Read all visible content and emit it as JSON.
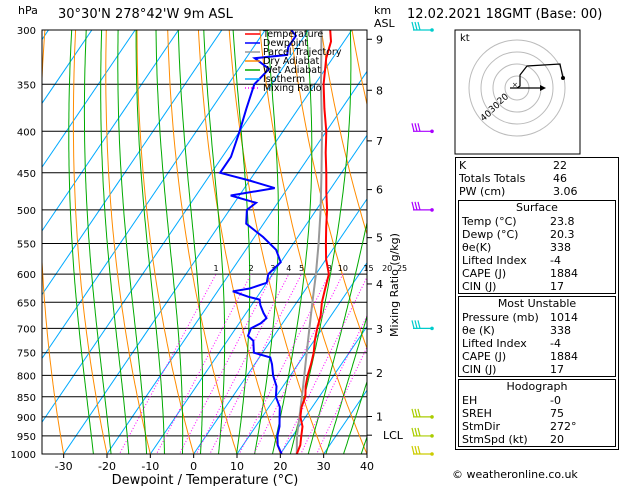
{
  "header": {
    "location": "30°30'N  278°42'W  9m  ASL",
    "datetime": "12.02.2021  18GMT  (Base: 00)"
  },
  "axes": {
    "pressure_unit": "hPa",
    "height_unit": "km",
    "height_unit2": "ASL",
    "mixing_label": "Mixing Ratio (g/kg)"
  },
  "legend": [
    {
      "label": "Temperature",
      "color": "#ff0000"
    },
    {
      "label": "Dewpoint",
      "color": "#0000ff"
    },
    {
      "label": "Parcel Trajectory",
      "color": "#999999"
    },
    {
      "label": "Dry Adiabat",
      "color": "#ff8c00"
    },
    {
      "label": "Wet Adiabat",
      "color": "#00aa00"
    },
    {
      "label": "Isotherm",
      "color": "#00aaff"
    },
    {
      "label": "Mixing Ratio",
      "color": "#ff00ff"
    }
  ],
  "chart_data": {
    "type": "line",
    "title": "",
    "xlabel": "Dewpoint / Temperature (°C)",
    "ylabel": "hPa",
    "xlim": [
      -35,
      40
    ],
    "x_ticks": [
      "-30",
      "-20",
      "-10",
      "0",
      "10",
      "20",
      "30",
      "40"
    ],
    "pressure_levels": [
      300,
      350,
      400,
      450,
      500,
      550,
      600,
      650,
      700,
      750,
      800,
      850,
      900,
      950,
      1000
    ],
    "height_ticks_km": [
      {
        "label": "9",
        "p": 308
      },
      {
        "label": "8",
        "p": 356
      },
      {
        "label": "7",
        "p": 411
      },
      {
        "label": "6",
        "p": 472
      },
      {
        "label": "5",
        "p": 541
      },
      {
        "label": "4",
        "p": 617
      },
      {
        "label": "3",
        "p": 701
      },
      {
        "label": "2",
        "p": 795
      },
      {
        "label": "1",
        "p": 899
      },
      {
        "label": "LCL",
        "p": 948
      }
    ],
    "mixing_ratio_labels": [
      "1",
      "2",
      "3",
      "4",
      "5",
      "8",
      "10",
      "15",
      "20",
      "25"
    ],
    "series": [
      {
        "name": "Temperature",
        "color": "#ff0000",
        "points": [
          [
            1000,
            23.8
          ],
          [
            975,
            23.2
          ],
          [
            950,
            22.0
          ],
          [
            925,
            20.8
          ],
          [
            900,
            18.8
          ],
          [
            875,
            17.5
          ],
          [
            850,
            16.8
          ],
          [
            825,
            15.2
          ],
          [
            800,
            14.0
          ],
          [
            775,
            13.0
          ],
          [
            750,
            11.8
          ],
          [
            725,
            10.2
          ],
          [
            700,
            8.8
          ],
          [
            675,
            7.6
          ],
          [
            650,
            5.8
          ],
          [
            625,
            4.4
          ],
          [
            600,
            3.0
          ],
          [
            575,
            0.0
          ],
          [
            550,
            -2.5
          ],
          [
            525,
            -5.0
          ],
          [
            500,
            -7.5
          ],
          [
            475,
            -10.5
          ],
          [
            450,
            -13.5
          ],
          [
            425,
            -16.8
          ],
          [
            400,
            -20.0
          ],
          [
            375,
            -24.0
          ],
          [
            350,
            -28.0
          ],
          [
            325,
            -31.5
          ],
          [
            310,
            -33.0
          ],
          [
            300,
            -35.0
          ]
        ]
      },
      {
        "name": "Dewpoint",
        "color": "#0000ff",
        "points": [
          [
            1000,
            20.3
          ],
          [
            975,
            18.0
          ],
          [
            950,
            16.5
          ],
          [
            925,
            15.5
          ],
          [
            900,
            14.0
          ],
          [
            875,
            12.5
          ],
          [
            850,
            10.0
          ],
          [
            825,
            8.5
          ],
          [
            800,
            6.0
          ],
          [
            775,
            4.0
          ],
          [
            760,
            2.5
          ],
          [
            750,
            -2.0
          ],
          [
            725,
            -4.0
          ],
          [
            715,
            -6.0
          ],
          [
            700,
            -6.5
          ],
          [
            690,
            -5.0
          ],
          [
            680,
            -4.5
          ],
          [
            670,
            -6.0
          ],
          [
            655,
            -8.0
          ],
          [
            645,
            -9.0
          ],
          [
            640,
            -12.0
          ],
          [
            630,
            -16.5
          ],
          [
            625,
            -13.0
          ],
          [
            615,
            -10.0
          ],
          [
            600,
            -11.0
          ],
          [
            580,
            -10.0
          ],
          [
            560,
            -13.0
          ],
          [
            540,
            -18.0
          ],
          [
            520,
            -24.0
          ],
          [
            500,
            -26.0
          ],
          [
            490,
            -25.0
          ],
          [
            480,
            -32.0
          ],
          [
            470,
            -23.0
          ],
          [
            460,
            -30.0
          ],
          [
            450,
            -38.0
          ],
          [
            430,
            -38.0
          ],
          [
            400,
            -40.0
          ],
          [
            375,
            -42.0
          ],
          [
            350,
            -44.0
          ],
          [
            335,
            -43.0
          ],
          [
            325,
            -48.0
          ],
          [
            322,
            -41.0
          ],
          [
            315,
            -42.0
          ],
          [
            305,
            -42.0
          ],
          [
            300,
            -44.0
          ]
        ]
      },
      {
        "name": "Parcel Trajectory",
        "color": "#999999",
        "points": [
          [
            1000,
            23.8
          ],
          [
            950,
            21.0
          ],
          [
            900,
            18.6
          ],
          [
            850,
            16.0
          ],
          [
            800,
            13.2
          ],
          [
            750,
            10.2
          ],
          [
            700,
            7.0
          ],
          [
            650,
            3.6
          ],
          [
            600,
            0.0
          ],
          [
            550,
            -4.2
          ],
          [
            500,
            -9.0
          ],
          [
            450,
            -14.6
          ],
          [
            400,
            -21.0
          ],
          [
            350,
            -28.6
          ],
          [
            300,
            -37.0
          ]
        ]
      }
    ]
  },
  "hodograph": {
    "label": "kt",
    "ring_labels": [
      "20",
      "30",
      "40"
    ]
  },
  "indices": {
    "basic": [
      {
        "label": "K",
        "value": "22"
      },
      {
        "label": "Totals Totals",
        "value": "46"
      },
      {
        "label": "PW (cm)",
        "value": "3.06"
      }
    ],
    "surface": {
      "title": "Surface",
      "rows": [
        {
          "label": "Temp (°C)",
          "value": "23.8"
        },
        {
          "label": "Dewp (°C)",
          "value": "20.3"
        },
        {
          "label": "θe(K)",
          "value": "338"
        },
        {
          "label": "Lifted Index",
          "value": "-4"
        },
        {
          "label": "CAPE (J)",
          "value": "1884"
        },
        {
          "label": "CIN (J)",
          "value": "17"
        }
      ]
    },
    "most_unstable": {
      "title": "Most Unstable",
      "rows": [
        {
          "label": "Pressure (mb)",
          "value": "1014"
        },
        {
          "label": "θe (K)",
          "value": "338"
        },
        {
          "label": "Lifted Index",
          "value": "-4"
        },
        {
          "label": "CAPE (J)",
          "value": "1884"
        },
        {
          "label": "CIN (J)",
          "value": "17"
        }
      ]
    },
    "hodograph": {
      "title": "Hodograph",
      "rows": [
        {
          "label": "EH",
          "value": "-0"
        },
        {
          "label": "SREH",
          "value": "75"
        },
        {
          "label": "StmDir",
          "value": "272°"
        },
        {
          "label": "StmSpd (kt)",
          "value": "20"
        }
      ]
    }
  },
  "credit": "© weatheronline.co.uk"
}
